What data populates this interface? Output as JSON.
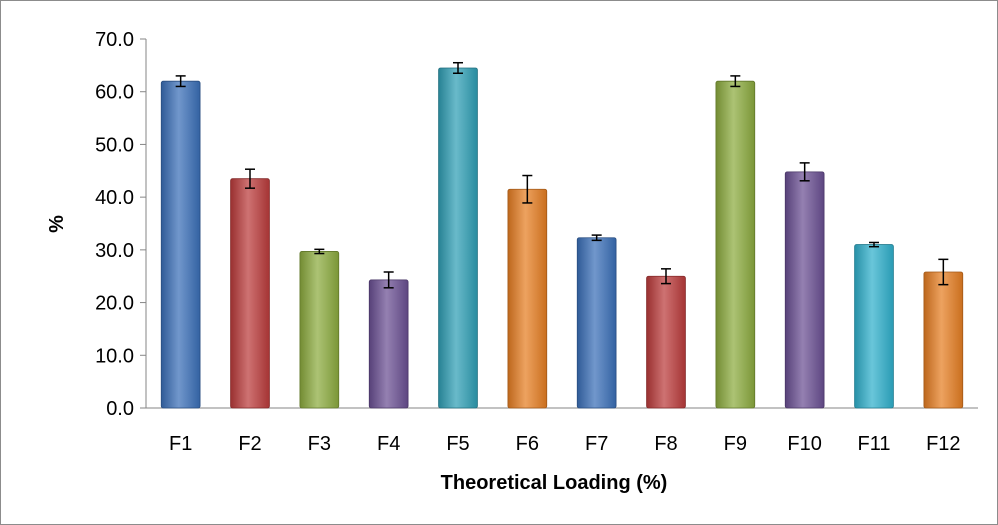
{
  "chart_data": {
    "type": "bar",
    "title": "",
    "xlabel": "Theoretical Loading (%)",
    "ylabel": "%",
    "ylim": [
      0,
      70
    ],
    "ytick_step": 10,
    "ytick_labels": [
      "0.0",
      "10.0",
      "20.0",
      "30.0",
      "40.0",
      "50.0",
      "60.0",
      "70.0"
    ],
    "grid": false,
    "legend": "none",
    "categories": [
      "F1",
      "F2",
      "F3",
      "F4",
      "F5",
      "F6",
      "F7",
      "F8",
      "F9",
      "F10",
      "F11",
      "F12"
    ],
    "values": [
      62.0,
      43.5,
      29.7,
      24.3,
      64.5,
      41.5,
      32.3,
      25.0,
      62.0,
      44.8,
      31.0,
      25.8
    ],
    "errors": [
      1.0,
      1.8,
      0.4,
      1.5,
      1.0,
      2.6,
      0.5,
      1.4,
      1.0,
      1.7,
      0.4,
      2.4
    ],
    "bar_colors": [
      "#3a6fb8",
      "#bb3b3b",
      "#8cab3e",
      "#6a4f93",
      "#2f9fb5",
      "#e67e22",
      "#3a6fb8",
      "#bb3b3b",
      "#8cab3e",
      "#6a4f93",
      "#2fb0cc",
      "#e67e22"
    ]
  }
}
